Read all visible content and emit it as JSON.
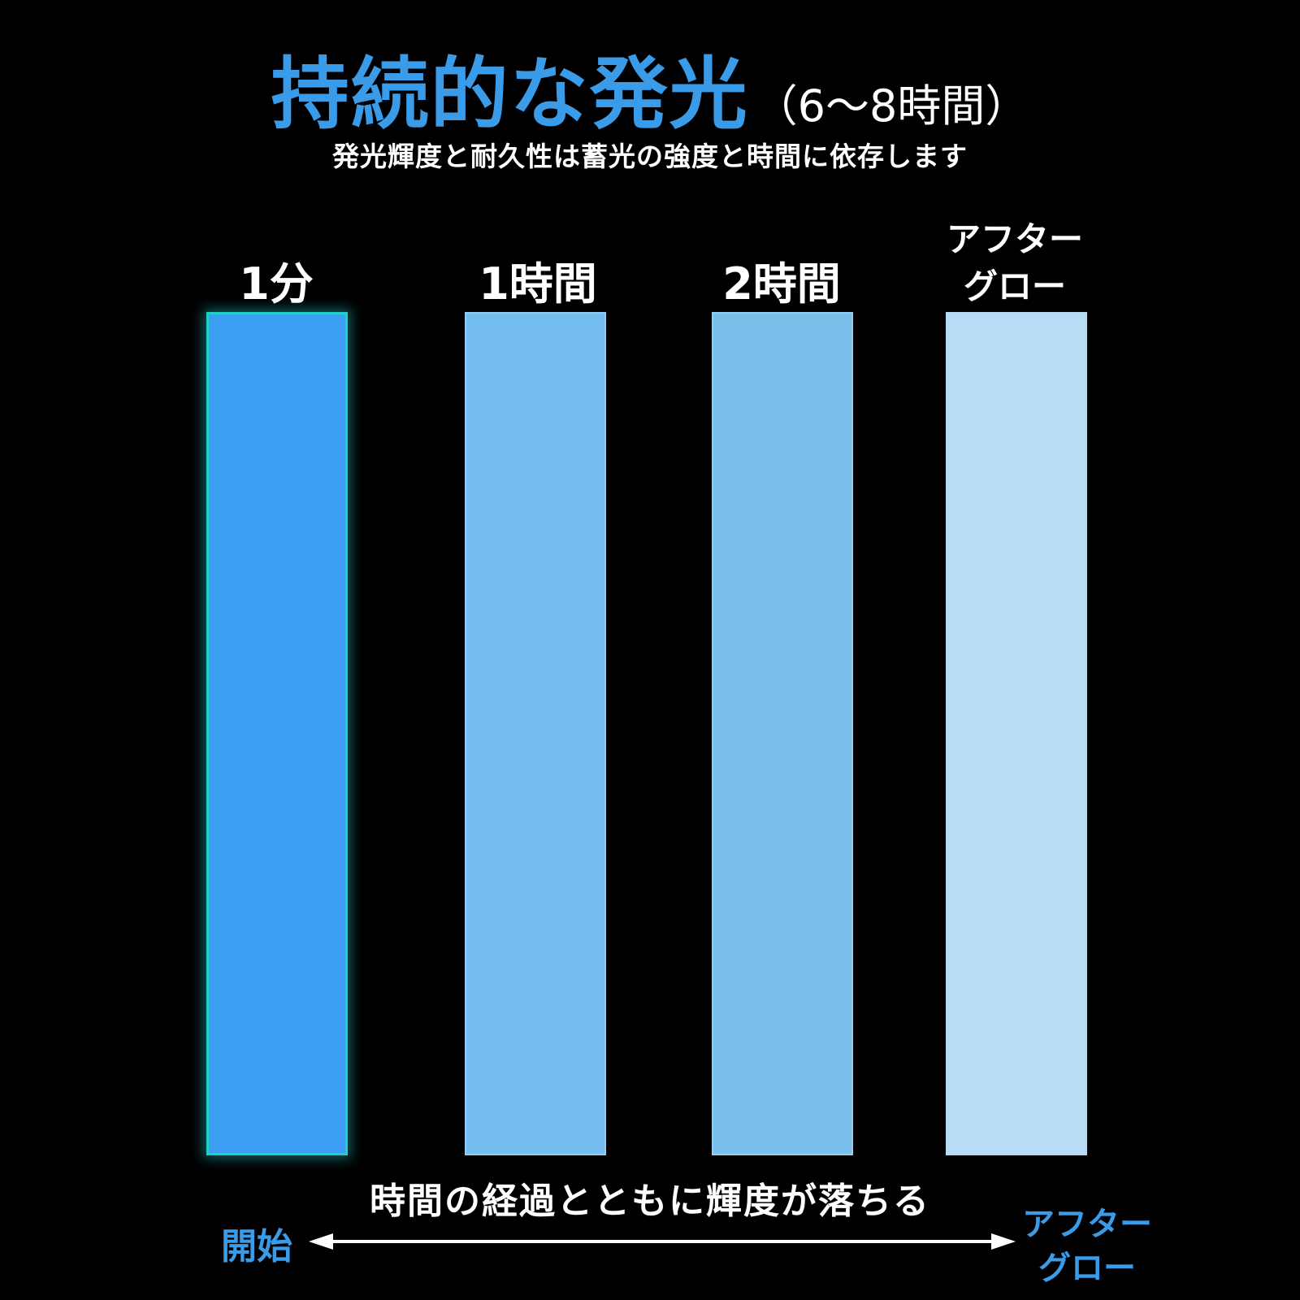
{
  "header": {
    "title": "持続的な発光",
    "title_suffix": "（6～8時間）",
    "subtitle": "発光輝度と耐久性は蓄光の強度と時間に依存します"
  },
  "stages": [
    {
      "label": "1分",
      "color": "#3b9ef2",
      "brightness_rank": 1
    },
    {
      "label": "1時間",
      "color": "#74bdf0",
      "brightness_rank": 2
    },
    {
      "label": "2時間",
      "color": "#79bfea",
      "brightness_rank": 3
    },
    {
      "label_line1": "アフター",
      "label_line2": "グロー",
      "color": "#b8dcf6",
      "brightness_rank": 4
    }
  ],
  "footer": {
    "caption": "時間の経過とともに輝度が落ちる",
    "start_label": "開始",
    "end_label_line1": "アフター",
    "end_label_line2": "グロー"
  },
  "colors": {
    "accent": "#3a9be8",
    "background": "#000000",
    "text": "#ffffff"
  }
}
